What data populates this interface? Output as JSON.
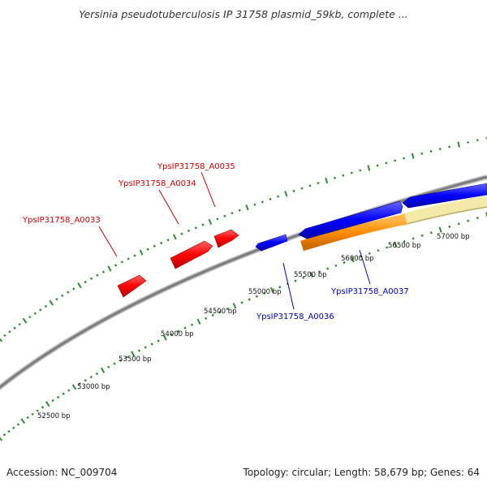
{
  "header": {
    "title": "Yersinia pseudotuberculosis IP 31758 plasmid_59kb, complete ..."
  },
  "footer": {
    "accession": "Accession: NC_009704",
    "summary": "Topology: circular; Length: 58,679 bp; Genes: 64"
  },
  "colors": {
    "backbone": "#8a8a8a",
    "ticks": "#2e8b2e",
    "forward_gene": "#ff0000",
    "reverse_gene": "#0000ff",
    "orange_feature": "#ff8c00",
    "pale_feature": "#f3e9a8"
  },
  "scale_labels": [
    "52500 bp",
    "53000 bp",
    "53500 bp",
    "54000 bp",
    "54500 bp",
    "55000 bp",
    "55500 bp",
    "56000 bp",
    "56500 bp",
    "57000 bp"
  ],
  "genes": [
    {
      "locus": "YpsIP31758_A0033",
      "strand": "forward"
    },
    {
      "locus": "YpsIP31758_A0034",
      "strand": "forward"
    },
    {
      "locus": "YpsIP31758_A0035",
      "strand": "forward"
    },
    {
      "locus": "YpsIP31758_A0036",
      "strand": "reverse"
    },
    {
      "locus": "YpsIP31758_A0037",
      "strand": "reverse"
    }
  ]
}
